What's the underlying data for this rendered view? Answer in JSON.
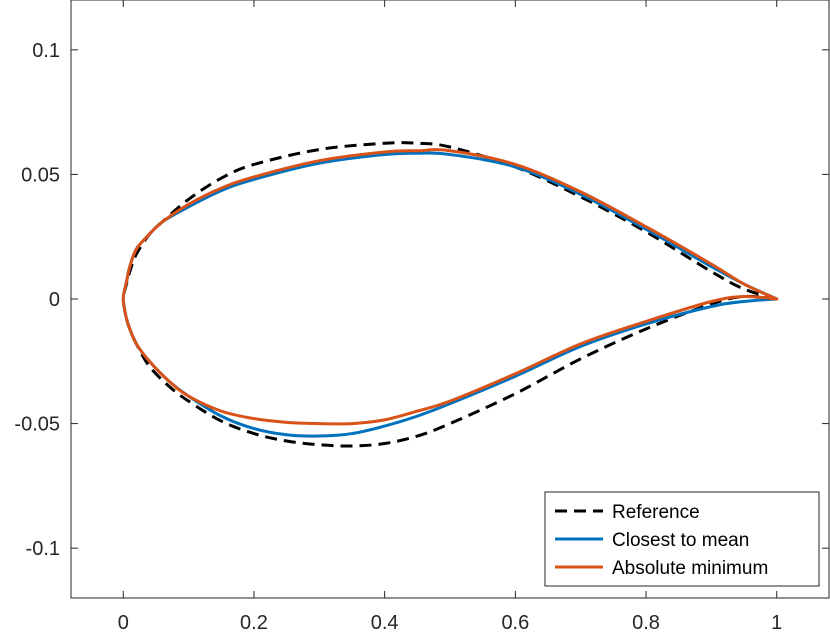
{
  "chart_data": {
    "type": "line",
    "title": "",
    "xlabel": "",
    "ylabel": "",
    "xlim": [
      -0.08,
      1.08
    ],
    "ylim": [
      -0.12,
      0.12
    ],
    "xticks": [
      0,
      0.2,
      0.4,
      0.6,
      0.8,
      1
    ],
    "xtick_labels": [
      "0",
      "0.2",
      "0.4",
      "0.6",
      "0.8",
      "1"
    ],
    "yticks": [
      -0.1,
      -0.05,
      0,
      0.05,
      0.1
    ],
    "ytick_labels": [
      "-0.1",
      "-0.05",
      "0",
      "0.05",
      "0.1"
    ],
    "grid": false,
    "legend_position": "bottom-right",
    "series": [
      {
        "name": "Reference",
        "color": "#000000",
        "style": "dashed",
        "x": [
          1.0,
          0.95,
          0.9,
          0.8,
          0.7,
          0.6,
          0.5,
          0.45,
          0.4,
          0.3,
          0.2,
          0.15,
          0.1,
          0.06,
          0.04,
          0.02,
          0.01,
          0.005,
          0.0,
          0.005,
          0.01,
          0.02,
          0.04,
          0.07,
          0.1,
          0.15,
          0.2,
          0.25,
          0.3,
          0.35,
          0.4,
          0.45,
          0.5,
          0.6,
          0.7,
          0.8,
          0.9,
          0.95,
          1.0
        ],
        "y": [
          0.0,
          0.004,
          0.011,
          0.027,
          0.041,
          0.053,
          0.061,
          0.0625,
          0.0625,
          0.06,
          0.054,
          0.0485,
          0.04,
          0.031,
          0.026,
          0.018,
          0.011,
          0.006,
          0.0,
          -0.008,
          -0.012,
          -0.018,
          -0.027,
          -0.035,
          -0.041,
          -0.049,
          -0.054,
          -0.057,
          -0.0585,
          -0.059,
          -0.058,
          -0.055,
          -0.05,
          -0.038,
          -0.024,
          -0.012,
          -0.002,
          0.001,
          0.0
        ]
      },
      {
        "name": "Closest to mean",
        "color": "#0072BD",
        "style": "solid",
        "x": [
          1.0,
          0.95,
          0.9,
          0.8,
          0.7,
          0.6,
          0.5,
          0.45,
          0.4,
          0.3,
          0.2,
          0.15,
          0.1,
          0.06,
          0.04,
          0.02,
          0.01,
          0.005,
          0.0,
          0.005,
          0.01,
          0.02,
          0.04,
          0.07,
          0.1,
          0.15,
          0.2,
          0.25,
          0.3,
          0.35,
          0.4,
          0.45,
          0.5,
          0.6,
          0.7,
          0.8,
          0.9,
          0.95,
          1.0
        ],
        "y": [
          0.0,
          0.006,
          0.013,
          0.028,
          0.042,
          0.053,
          0.058,
          0.0585,
          0.058,
          0.0545,
          0.048,
          0.0435,
          0.037,
          0.031,
          0.026,
          0.02,
          0.013,
          0.007,
          0.0,
          -0.008,
          -0.012,
          -0.018,
          -0.025,
          -0.033,
          -0.039,
          -0.047,
          -0.052,
          -0.0545,
          -0.055,
          -0.054,
          -0.051,
          -0.047,
          -0.042,
          -0.031,
          -0.019,
          -0.01,
          -0.003,
          -0.001,
          0.0
        ]
      },
      {
        "name": "Absolute minimum",
        "color": "#D95319",
        "style": "solid",
        "x": [
          1.0,
          0.95,
          0.9,
          0.8,
          0.7,
          0.6,
          0.5,
          0.45,
          0.4,
          0.3,
          0.2,
          0.15,
          0.1,
          0.06,
          0.04,
          0.02,
          0.01,
          0.005,
          0.0,
          0.005,
          0.01,
          0.02,
          0.04,
          0.07,
          0.1,
          0.15,
          0.2,
          0.25,
          0.3,
          0.35,
          0.4,
          0.45,
          0.5,
          0.6,
          0.7,
          0.8,
          0.9,
          0.95,
          1.0
        ],
        "y": [
          0.0,
          0.006,
          0.014,
          0.029,
          0.043,
          0.054,
          0.0595,
          0.0595,
          0.059,
          0.0555,
          0.049,
          0.0445,
          0.038,
          0.031,
          0.026,
          0.02,
          0.013,
          0.007,
          0.0,
          -0.008,
          -0.012,
          -0.018,
          -0.025,
          -0.033,
          -0.039,
          -0.045,
          -0.048,
          -0.0495,
          -0.05,
          -0.05,
          -0.0485,
          -0.045,
          -0.041,
          -0.03,
          -0.018,
          -0.009,
          -0.001,
          0.001,
          0.0
        ]
      }
    ]
  }
}
